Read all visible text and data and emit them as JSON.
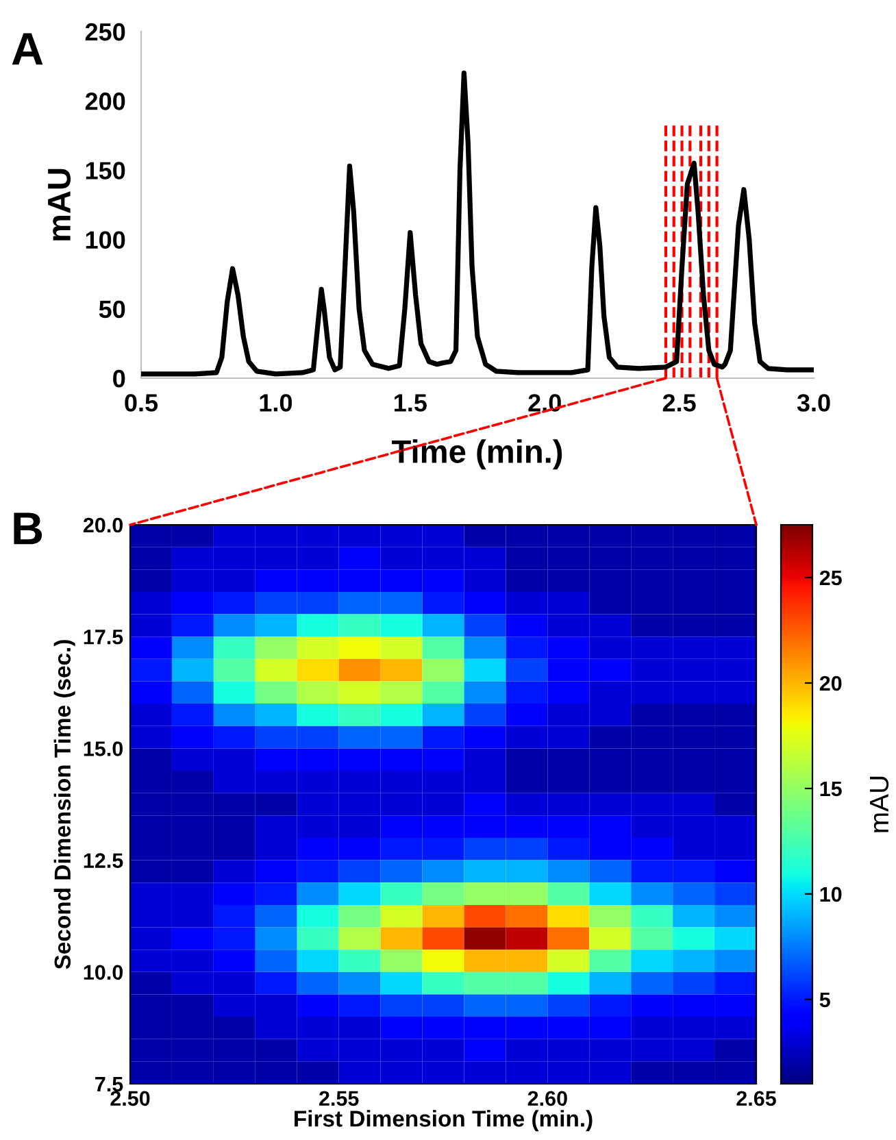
{
  "chart_data": [
    {
      "type": "line",
      "xlabel": "Time (min.)",
      "ylabel": "mAU",
      "annotations": [
        "A"
      ],
      "x": [
        0.5,
        0.7,
        0.78,
        0.8,
        0.82,
        0.84,
        0.86,
        0.88,
        0.9,
        0.93,
        1.0,
        1.1,
        1.14,
        1.16,
        1.17,
        1.18,
        1.2,
        1.22,
        1.24,
        1.26,
        1.275,
        1.29,
        1.31,
        1.33,
        1.36,
        1.42,
        1.46,
        1.48,
        1.5,
        1.52,
        1.54,
        1.57,
        1.6,
        1.62,
        1.65,
        1.67,
        1.685,
        1.7,
        1.715,
        1.73,
        1.75,
        1.78,
        1.82,
        1.9,
        2.0,
        2.1,
        2.16,
        2.175,
        2.19,
        2.205,
        2.22,
        2.24,
        2.27,
        2.35,
        2.45,
        2.49,
        2.51,
        2.53,
        2.555,
        2.57,
        2.59,
        2.61,
        2.63,
        2.66,
        2.67,
        2.69,
        2.72,
        2.74,
        2.76,
        2.78,
        2.8,
        2.83,
        2.9,
        3.0
      ],
      "series": [
        {
          "color": "#000000",
          "values": [
            3,
            3,
            4,
            15,
            55,
            79,
            60,
            30,
            12,
            5,
            3,
            4,
            6,
            45,
            64,
            50,
            15,
            6,
            8,
            90,
            153,
            120,
            50,
            20,
            10,
            7,
            9,
            50,
            105,
            60,
            25,
            12,
            10,
            11,
            12,
            20,
            150,
            220,
            170,
            80,
            30,
            10,
            5,
            4,
            4,
            4,
            6,
            80,
            123,
            95,
            45,
            15,
            8,
            7,
            8,
            12,
            80,
            140,
            155,
            120,
            60,
            20,
            10,
            8,
            10,
            20,
            110,
            136,
            100,
            40,
            12,
            7,
            6,
            6
          ]
        }
      ],
      "xlim": [
        0.5,
        3.0
      ],
      "ylim": [
        0,
        250
      ],
      "xticks": [
        0.5,
        {
          "value": 1,
          "label": "1.0"
        },
        1.5,
        {
          "value": 2,
          "label": "2.0"
        },
        2.5,
        {
          "value": 3,
          "label": "3.0"
        }
      ],
      "yticks": [
        0,
        50,
        100,
        150,
        200,
        250
      ],
      "ref_lines": [
        {
          "axis": "x",
          "value": 2.45,
          "color": "#ff0000",
          "line_style": "dashed"
        },
        {
          "axis": "x",
          "value": 2.48,
          "color": "#ff0000",
          "line_style": "dashed"
        },
        {
          "axis": "x",
          "value": 2.51,
          "color": "#ff0000",
          "line_style": "dashed"
        },
        {
          "axis": "x",
          "value": 2.54,
          "color": "#ff0000",
          "line_style": "dashed"
        },
        {
          "axis": "x",
          "value": 2.58,
          "color": "#ff0000",
          "line_style": "dashed"
        },
        {
          "axis": "x",
          "value": 2.61,
          "color": "#ff0000",
          "line_style": "dashed"
        },
        {
          "axis": "x",
          "value": 2.64,
          "color": "#ff0000",
          "line_style": "dashed"
        }
      ],
      "grid": false,
      "legend": false,
      "marker": "none",
      "line_style": "solid"
    },
    {
      "type": "heatmap",
      "xlabel": "First Dimension Time (min.)",
      "ylabel": "Second Dimension Time (sec.)",
      "clabel": "mAU",
      "annotations": [
        "B"
      ],
      "x": [
        2.505,
        2.515,
        2.525,
        2.535,
        2.545,
        2.555,
        2.565,
        2.575,
        2.585,
        2.595,
        2.605,
        2.615,
        2.625,
        2.635,
        2.645
      ],
      "y": [
        19.75,
        19.25,
        18.75,
        18.25,
        17.75,
        17.25,
        16.75,
        16.25,
        15.75,
        15.25,
        14.75,
        14.25,
        13.75,
        13.25,
        12.75,
        12.25,
        11.75,
        11.25,
        10.75,
        10.25,
        9.75,
        9.25,
        8.75,
        8.25,
        7.75
      ],
      "cells": [
        [
          2,
          2,
          3,
          3,
          3,
          3,
          3,
          3,
          2,
          2,
          2,
          2,
          2,
          2,
          2
        ],
        [
          2,
          3,
          3,
          3,
          3,
          4,
          3,
          3,
          3,
          2,
          2,
          2,
          2,
          2,
          2
        ],
        [
          2,
          3,
          3,
          4,
          4,
          4,
          4,
          4,
          3,
          2,
          2,
          2,
          2,
          2,
          2
        ],
        [
          3,
          4,
          5,
          6,
          6,
          7,
          7,
          5,
          4,
          3,
          3,
          2,
          2,
          2,
          2
        ],
        [
          3,
          5,
          8,
          9,
          11,
          12,
          11,
          9,
          6,
          4,
          3,
          3,
          2,
          2,
          2
        ],
        [
          4,
          8,
          12,
          15,
          17,
          18,
          17,
          13,
          8,
          5,
          4,
          3,
          3,
          3,
          3
        ],
        [
          5,
          9,
          13,
          17,
          19,
          21,
          20,
          15,
          10,
          6,
          4,
          4,
          3,
          3,
          3
        ],
        [
          4,
          7,
          11,
          14,
          16,
          17,
          16,
          13,
          8,
          5,
          4,
          3,
          3,
          3,
          3
        ],
        [
          3,
          5,
          8,
          9,
          11,
          12,
          11,
          9,
          6,
          4,
          3,
          3,
          2,
          2,
          2
        ],
        [
          3,
          4,
          5,
          6,
          6,
          7,
          7,
          5,
          4,
          3,
          3,
          2,
          2,
          2,
          2
        ],
        [
          2,
          3,
          3,
          4,
          4,
          4,
          4,
          4,
          3,
          2,
          2,
          2,
          2,
          2,
          2
        ],
        [
          2,
          2,
          3,
          3,
          3,
          3,
          3,
          3,
          3,
          2,
          2,
          2,
          2,
          2,
          2
        ],
        [
          2,
          2,
          2,
          2,
          3,
          3,
          3,
          3,
          4,
          3,
          3,
          3,
          3,
          3,
          2
        ],
        [
          2,
          2,
          2,
          3,
          3,
          3,
          4,
          4,
          4,
          4,
          4,
          4,
          3,
          3,
          3
        ],
        [
          2,
          2,
          2,
          3,
          4,
          4,
          5,
          5,
          6,
          6,
          5,
          4,
          4,
          3,
          3
        ],
        [
          2,
          2,
          3,
          4,
          5,
          6,
          7,
          8,
          9,
          9,
          8,
          7,
          5,
          5,
          4
        ],
        [
          3,
          3,
          4,
          5,
          8,
          10,
          12,
          14,
          15,
          15,
          13,
          10,
          8,
          7,
          6
        ],
        [
          3,
          3,
          5,
          7,
          11,
          14,
          17,
          20,
          23,
          22,
          19,
          15,
          12,
          9,
          8
        ],
        [
          3,
          4,
          5,
          8,
          12,
          16,
          20,
          23,
          27,
          26,
          22,
          17,
          13,
          11,
          10
        ],
        [
          3,
          3,
          4,
          7,
          10,
          12,
          15,
          18,
          20,
          20,
          17,
          13,
          10,
          9,
          8
        ],
        [
          2,
          3,
          3,
          5,
          7,
          8,
          10,
          12,
          13,
          13,
          11,
          9,
          7,
          6,
          5
        ],
        [
          2,
          2,
          3,
          3,
          4,
          5,
          6,
          6,
          7,
          7,
          6,
          5,
          4,
          4,
          4
        ],
        [
          2,
          2,
          2,
          3,
          3,
          3,
          4,
          4,
          4,
          4,
          4,
          4,
          3,
          3,
          3
        ],
        [
          2,
          2,
          2,
          2,
          3,
          3,
          3,
          3,
          4,
          3,
          3,
          3,
          3,
          3,
          2
        ],
        [
          2,
          2,
          2,
          2,
          2,
          3,
          3,
          3,
          3,
          3,
          3,
          3,
          2,
          2,
          2
        ]
      ],
      "xlim": [
        2.5,
        2.65
      ],
      "ylim": [
        7.5,
        20
      ],
      "xticks": [
        {
          "value": 2.5,
          "label": "2.50"
        },
        2.55,
        {
          "value": 2.6,
          "label": "2.60"
        },
        2.65
      ],
      "yticks": [
        7.5,
        {
          "value": 10,
          "label": "10.0"
        },
        12.5,
        {
          "value": 15,
          "label": "15.0"
        },
        17.5,
        {
          "value": 20,
          "label": "20.0"
        }
      ],
      "clim": [
        1,
        27.5
      ],
      "cticks": [
        5,
        10,
        15,
        20,
        25
      ]
    }
  ]
}
